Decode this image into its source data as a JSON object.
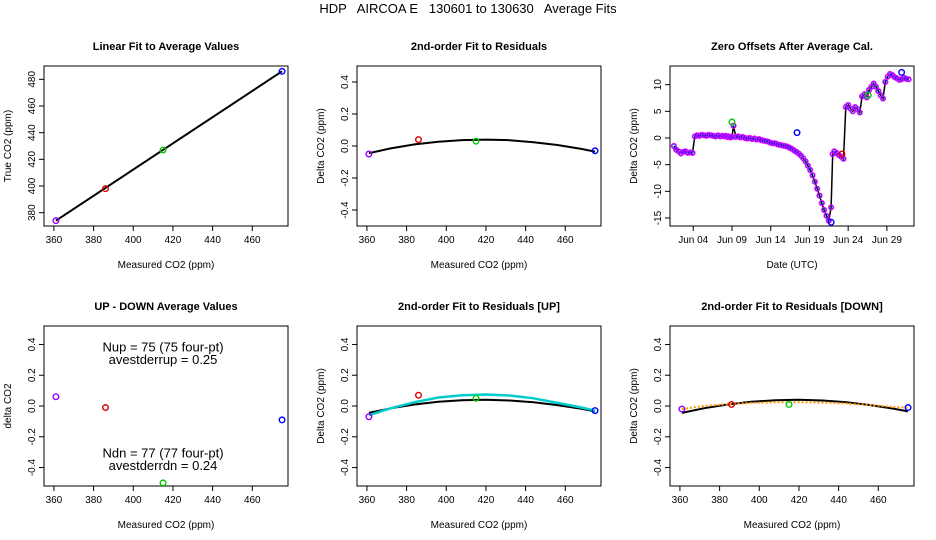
{
  "page_title": "HDP   AIRCOA E   130601 to 130630   Average Fits",
  "chart_data": [
    {
      "id": "p1",
      "type": "scatter",
      "title": "Linear Fit to Average Values",
      "xlabel": "Measured CO2 (ppm)",
      "ylabel": "True CO2 (ppm)",
      "xlim": [
        355,
        478
      ],
      "ylim": [
        370,
        490
      ],
      "xticks": [
        "360",
        "380",
        "400",
        "420",
        "440",
        "460"
      ],
      "yticks": [
        "380",
        "400",
        "420",
        "440",
        "460",
        "480"
      ],
      "xtick_values": [
        360,
        380,
        400,
        420,
        440,
        460
      ],
      "ytick_values": [
        380,
        400,
        420,
        440,
        460,
        480
      ],
      "points": [
        {
          "x": 361,
          "y": 374,
          "color": "#9900ff"
        },
        {
          "x": 386,
          "y": 398,
          "color": "#dd0000"
        },
        {
          "x": 415,
          "y": 427,
          "color": "#00cc00"
        },
        {
          "x": 475,
          "y": 486,
          "color": "#0000ff"
        }
      ],
      "lines": [
        {
          "color": "#000000",
          "x": [
            361,
            475
          ],
          "y": [
            374,
            486
          ]
        }
      ]
    },
    {
      "id": "p2",
      "type": "scatter",
      "title": "2nd-order Fit to Residuals",
      "xlabel": "Measured CO2 (ppm)",
      "ylabel": "Delta CO2 (ppm)",
      "xlim": [
        355,
        478
      ],
      "ylim": [
        -0.5,
        0.5
      ],
      "xticks": [
        "360",
        "380",
        "400",
        "420",
        "440",
        "460"
      ],
      "yticks": [
        "-0.4",
        "-0.2",
        "0.0",
        "0.2",
        "0.4"
      ],
      "xtick_values": [
        360,
        380,
        400,
        420,
        440,
        460
      ],
      "ytick_values": [
        -0.4,
        -0.2,
        0.0,
        0.2,
        0.4
      ],
      "points": [
        {
          "x": 361,
          "y": -0.05,
          "color": "#9900ff"
        },
        {
          "x": 386,
          "y": 0.04,
          "color": "#dd0000"
        },
        {
          "x": 415,
          "y": 0.03,
          "color": "#00cc00"
        },
        {
          "x": 475,
          "y": -0.03,
          "color": "#0000ff"
        }
      ],
      "lines": [
        {
          "color": "#000000",
          "x": [
            361,
            372,
            384,
            396,
            408,
            420,
            432,
            444,
            456,
            468,
            475
          ],
          "y": [
            -0.045,
            -0.015,
            0.01,
            0.027,
            0.037,
            0.04,
            0.036,
            0.024,
            0.006,
            -0.018,
            -0.035
          ]
        }
      ]
    },
    {
      "id": "p3",
      "type": "line",
      "title": "Zero Offsets After Average Cal.",
      "xlabel": "Date (UTC)",
      "ylabel": "Delta CO2 (ppm)",
      "xlim": [
        0,
        31.5
      ],
      "ylim": [
        -16.5,
        13.5
      ],
      "xticks": [
        "Jun 04",
        "Jun 09",
        "Jun 14",
        "Jun 19",
        "Jun 24",
        "Jun 29"
      ],
      "yticks": [
        "-15",
        "-10",
        "-5",
        "0",
        "5",
        "10"
      ],
      "xtick_values": [
        3,
        8,
        13,
        18,
        23,
        28
      ],
      "ytick_values": [
        -15,
        -10,
        -5,
        0,
        5,
        10
      ],
      "line_x": [
        0.5,
        0.8,
        1.1,
        1.4,
        1.7,
        2.0,
        2.3,
        2.6,
        2.9,
        3.2,
        3.5,
        3.8,
        4.1,
        4.4,
        4.7,
        5.0,
        5.3,
        5.6,
        5.9,
        6.2,
        6.5,
        6.8,
        7.0,
        7.2,
        7.4,
        7.6,
        7.8,
        8.0,
        8.2,
        8.5,
        8.8,
        9.1,
        9.4,
        9.7,
        10.0,
        10.3,
        10.6,
        10.9,
        11.2,
        11.5,
        11.8,
        12.1,
        12.4,
        12.7,
        13.0,
        13.3,
        13.6,
        13.9,
        14.2,
        14.5,
        14.8,
        15.1,
        15.4,
        15.7,
        16.0,
        16.3,
        16.6,
        16.9,
        17.2,
        17.5,
        17.8,
        18.1,
        18.4,
        18.7,
        19.0,
        19.3,
        19.6,
        19.9,
        20.2,
        20.5,
        20.8,
        21.0,
        21.2,
        21.5,
        21.8,
        22.1,
        22.4,
        22.7,
        23.0,
        23.3,
        23.6,
        23.9,
        24.2,
        24.5,
        24.8,
        25.1,
        25.4,
        25.7,
        26.0,
        26.3,
        26.6,
        26.9,
        27.2,
        27.5,
        27.8,
        28.1,
        28.4,
        28.7,
        29.0,
        29.3,
        29.6,
        29.9,
        30.2,
        30.5,
        30.8
      ],
      "line_y": [
        -1.5,
        -2.2,
        -2.5,
        -2.9,
        -2.6,
        -2.5,
        -2.8,
        -2.7,
        -2.8,
        0.3,
        0.5,
        0.4,
        0.6,
        0.5,
        0.4,
        0.6,
        0.5,
        0.4,
        0.3,
        0.5,
        0.3,
        0.4,
        0.3,
        0.4,
        0.2,
        0.3,
        0.1,
        0.2,
        2.3,
        0.2,
        0.3,
        0.1,
        0.2,
        0.0,
        -0.1,
        0.0,
        -0.2,
        -0.1,
        -0.3,
        -0.2,
        -0.4,
        -0.5,
        -0.6,
        -0.7,
        -0.9,
        -1.0,
        -1.0,
        -1.2,
        -1.3,
        -1.4,
        -1.5,
        -1.6,
        -1.8,
        -2.0,
        -2.3,
        -2.6,
        -2.9,
        -3.3,
        -3.8,
        -4.4,
        -5.2,
        -6.0,
        -7.0,
        -8.2,
        -9.5,
        -10.8,
        -12.2,
        -13.5,
        -14.6,
        -15.5,
        -13.0,
        -3.0,
        -2.5,
        -2.8,
        -3.2,
        -3.5,
        -3.9,
        5.8,
        6.2,
        5.5,
        5.0,
        5.8,
        5.4,
        4.8,
        7.8,
        8.2,
        7.6,
        9.0,
        9.6,
        10.2,
        9.6,
        8.8,
        8.0,
        7.4,
        10.5,
        11.5,
        12.0,
        11.8,
        11.4,
        11.2,
        10.9,
        11.0,
        11.3,
        11.1,
        11.0
      ],
      "extra_points": [
        {
          "x": 8.0,
          "y": 3.0,
          "color": "#00cc00"
        },
        {
          "x": 22.2,
          "y": -3.0,
          "color": "#dd0000"
        },
        {
          "x": 16.4,
          "y": 1.0,
          "color": "#0000ff"
        },
        {
          "x": 20.8,
          "y": -15.8,
          "color": "#0000ff"
        },
        {
          "x": 25.6,
          "y": 8.0,
          "color": "#00cc00"
        },
        {
          "x": 29.9,
          "y": 12.3,
          "color": "#0000ff"
        }
      ]
    },
    {
      "id": "p4",
      "type": "scatter",
      "title": "UP - DOWN Average Values",
      "xlabel": "Measured CO2 (ppm)",
      "ylabel": "delta CO2",
      "xlim": [
        355,
        478
      ],
      "ylim": [
        -0.52,
        0.52
      ],
      "xticks": [
        "360",
        "380",
        "400",
        "420",
        "440",
        "460"
      ],
      "yticks": [
        "-0.4",
        "-0.2",
        "0.0",
        "0.2",
        "0.4"
      ],
      "xtick_values": [
        360,
        380,
        400,
        420,
        440,
        460
      ],
      "ytick_values": [
        -0.4,
        -0.2,
        0.0,
        0.2,
        0.4
      ],
      "points": [
        {
          "x": 361,
          "y": 0.06,
          "color": "#9900ff"
        },
        {
          "x": 386,
          "y": -0.01,
          "color": "#dd0000"
        },
        {
          "x": 415,
          "y": -0.5,
          "color": "#00cc00"
        },
        {
          "x": 475,
          "y": -0.09,
          "color": "#0000ff"
        }
      ],
      "annotations": {
        "nup": "Nup = 75 (75 four-pt)",
        "avestderrup": "avestderrup =  0.25",
        "ndn": "Ndn = 77 (77 four-pt)",
        "avestderrdn": "avestderrdn =  0.24"
      }
    },
    {
      "id": "p5",
      "type": "scatter",
      "title": "2nd-order Fit to Residuals [UP]",
      "xlabel": "Measured CO2 (ppm)",
      "ylabel": "Delta CO2 (ppm)",
      "xlim": [
        355,
        478
      ],
      "ylim": [
        -0.52,
        0.52
      ],
      "xticks": [
        "360",
        "380",
        "400",
        "420",
        "440",
        "460"
      ],
      "yticks": [
        "-0.4",
        "-0.2",
        "0.0",
        "0.2",
        "0.4"
      ],
      "xtick_values": [
        360,
        380,
        400,
        420,
        440,
        460
      ],
      "ytick_values": [
        -0.4,
        -0.2,
        0.0,
        0.2,
        0.4
      ],
      "points": [
        {
          "x": 361,
          "y": -0.07,
          "color": "#9900ff"
        },
        {
          "x": 386,
          "y": 0.07,
          "color": "#dd0000"
        },
        {
          "x": 415,
          "y": 0.05,
          "color": "#00cc00"
        },
        {
          "x": 475,
          "y": -0.03,
          "color": "#0000ff"
        }
      ],
      "lines": [
        {
          "color": "#000000",
          "x": [
            361,
            372,
            384,
            396,
            408,
            420,
            432,
            444,
            456,
            468,
            475
          ],
          "y": [
            -0.045,
            -0.015,
            0.01,
            0.027,
            0.037,
            0.04,
            0.036,
            0.024,
            0.006,
            -0.018,
            -0.035
          ]
        },
        {
          "color": "#00cccc",
          "x": [
            361,
            372,
            384,
            396,
            408,
            420,
            432,
            444,
            456,
            468,
            475
          ],
          "y": [
            -0.06,
            -0.015,
            0.025,
            0.055,
            0.07,
            0.075,
            0.068,
            0.05,
            0.02,
            -0.01,
            -0.03
          ]
        }
      ]
    },
    {
      "id": "p6",
      "type": "scatter",
      "title": "2nd-order Fit to Residuals [DOWN]",
      "xlabel": "Measured CO2 (ppm)",
      "ylabel": "Delta CO2 (ppm)",
      "xlim": [
        355,
        478
      ],
      "ylim": [
        -0.52,
        0.52
      ],
      "xticks": [
        "360",
        "380",
        "400",
        "420",
        "440",
        "460"
      ],
      "yticks": [
        "-0.4",
        "-0.2",
        "0.0",
        "0.2",
        "0.4"
      ],
      "xtick_values": [
        360,
        380,
        400,
        420,
        440,
        460
      ],
      "ytick_values": [
        -0.4,
        -0.2,
        0.0,
        0.2,
        0.4
      ],
      "points": [
        {
          "x": 361,
          "y": -0.02,
          "color": "#9900ff"
        },
        {
          "x": 386,
          "y": 0.01,
          "color": "#dd0000"
        },
        {
          "x": 415,
          "y": 0.01,
          "color": "#00cc00"
        },
        {
          "x": 475,
          "y": -0.01,
          "color": "#0000ff"
        }
      ],
      "lines": [
        {
          "color": "#000000",
          "x": [
            361,
            372,
            384,
            396,
            408,
            420,
            432,
            444,
            456,
            468,
            475
          ],
          "y": [
            -0.045,
            -0.015,
            0.01,
            0.027,
            0.037,
            0.04,
            0.036,
            0.024,
            0.006,
            -0.018,
            -0.035
          ]
        },
        {
          "color": "#ff9900",
          "dashed": true,
          "x": [
            361,
            372,
            384,
            396,
            408,
            420,
            432,
            444,
            456,
            468,
            475
          ],
          "y": [
            -0.02,
            0.0,
            0.012,
            0.02,
            0.024,
            0.025,
            0.022,
            0.016,
            0.006,
            -0.006,
            -0.012
          ]
        }
      ]
    }
  ]
}
